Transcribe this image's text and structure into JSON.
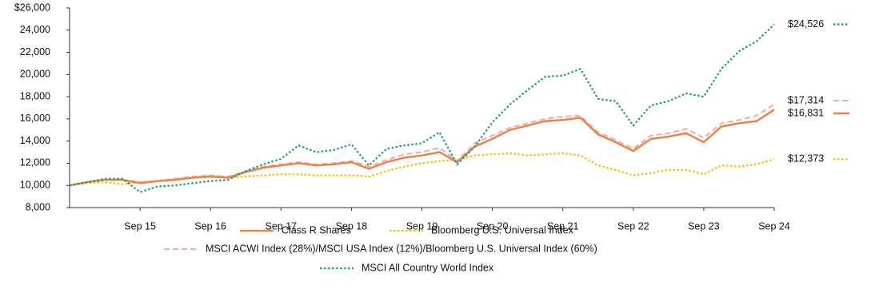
{
  "chart_data": {
    "type": "line",
    "categories": [
      null,
      null,
      null,
      null,
      "Sep 15",
      null,
      null,
      null,
      "Sep 16",
      null,
      null,
      null,
      "Sep 17",
      null,
      null,
      null,
      "Sep 18",
      null,
      null,
      null,
      "Sep 19",
      null,
      null,
      null,
      "Sep 20",
      null,
      null,
      null,
      "Sep 21",
      null,
      null,
      null,
      "Sep 22",
      null,
      null,
      null,
      "Sep 23",
      null,
      null,
      null,
      "Sep 24"
    ],
    "ylim": [
      8000,
      26000
    ],
    "yticks": [
      {
        "value": 8000,
        "label": "8,000"
      },
      {
        "value": 10000,
        "label": "10,000"
      },
      {
        "value": 12000,
        "label": "12,000"
      },
      {
        "value": 14000,
        "label": "14,000"
      },
      {
        "value": 16000,
        "label": "16,000"
      },
      {
        "value": 18000,
        "label": "18,000"
      },
      {
        "value": 20000,
        "label": "20,000"
      },
      {
        "value": 22000,
        "label": "22,000"
      },
      {
        "value": 24000,
        "label": "24,000"
      },
      {
        "value": 26000,
        "label": "$26,000"
      }
    ],
    "grid": false,
    "series": [
      {
        "name": "Class R Shares",
        "color": "#e8834a",
        "style": "solid",
        "values": [
          10000,
          10300,
          10500,
          10500,
          10200,
          10400,
          10500,
          10700,
          10800,
          10700,
          11200,
          11600,
          11800,
          12000,
          11800,
          11900,
          12100,
          11500,
          12100,
          12500,
          12700,
          13000,
          12100,
          13500,
          14200,
          15000,
          15400,
          15800,
          15900,
          16100,
          14600,
          13900,
          13100,
          14200,
          14400,
          14700,
          13900,
          15300,
          15600,
          15800,
          16831
        ],
        "end_label": "$16,831"
      },
      {
        "name": "Bloomberg U.S. Universal Index",
        "color": "#f2c200",
        "style": "dotted",
        "values": [
          10000,
          10200,
          10300,
          10100,
          10300,
          10400,
          10600,
          10700,
          10900,
          10700,
          10800,
          10900,
          11000,
          11000,
          10900,
          10900,
          10900,
          10800,
          11300,
          11700,
          12000,
          12200,
          12300,
          12700,
          12800,
          12900,
          12700,
          12800,
          12900,
          12700,
          11800,
          11400,
          10900,
          11100,
          11400,
          11400,
          11000,
          11800,
          11700,
          11900,
          12373
        ],
        "end_label": "$12,373"
      },
      {
        "name": "MSCI ACWI Index (28%)/MSCI USA Index (12%)/Bloomberg U.S. Universal Index (60%)",
        "color": "#f4a9a8",
        "style": "dashed",
        "values": [
          10000,
          10300,
          10500,
          10500,
          10300,
          10400,
          10600,
          10800,
          10900,
          10800,
          11300,
          11700,
          11900,
          12100,
          11900,
          12000,
          12200,
          11700,
          12300,
          12800,
          13000,
          13400,
          12200,
          13800,
          14500,
          15200,
          15600,
          16000,
          16200,
          16300,
          14800,
          14100,
          13300,
          14500,
          14700,
          15100,
          14300,
          15600,
          15900,
          16300,
          17314
        ],
        "end_label": "$17,314"
      },
      {
        "name": "MSCI All Country World Index",
        "color": "#1a9e77",
        "style": "dotted",
        "values": [
          10000,
          10300,
          10600,
          10600,
          9400,
          9900,
          10000,
          10200,
          10400,
          10500,
          11300,
          11900,
          12400,
          13600,
          13000,
          13200,
          13700,
          11800,
          13300,
          13600,
          13800,
          14800,
          11900,
          13500,
          15700,
          17300,
          18600,
          19800,
          19900,
          20500,
          17800,
          17600,
          15400,
          17200,
          17600,
          18300,
          18000,
          20500,
          22100,
          23000,
          24526
        ],
        "end_label": "$24,526"
      }
    ]
  }
}
